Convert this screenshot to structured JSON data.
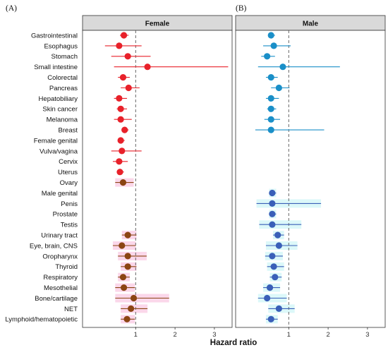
{
  "chart_data": {
    "type": "scatter",
    "subtype": "forest",
    "panel_letters": [
      "(A)",
      "(B)"
    ],
    "xlabel": "Hazard ratio",
    "x_ticks": [
      "1",
      "2",
      "3"
    ],
    "xlim": [
      -0.35,
      3.45
    ],
    "reference_line": 1,
    "categories": [
      "Gastrointestinal",
      "Esophagus",
      "Stomach",
      "Small intestine",
      "Colorectal",
      "Pancreas",
      "Hepatobiliary",
      "Skin cancer",
      "Melanoma",
      "Breast",
      "Female genital",
      "Vulva/vagina",
      "Cervix",
      "Uterus",
      "Ovary",
      "Male genital",
      "Penis",
      "Prostate",
      "Testis",
      "Urinary tract",
      "Eye, brain, CNS",
      "Oropharynx",
      "Thyroid",
      "Respiratory",
      "Mesothelial",
      "Bone/cartilage",
      "NET",
      "Lymphoid/hematopoietic"
    ],
    "panels": [
      {
        "title": "Female",
        "colors": {
          "point_sex_specific": "#e8212a",
          "point_shared": "#8b4513",
          "band": "#f7b6d8"
        },
        "points": [
          {
            "est": 0.7,
            "lo": 0.6,
            "hi": 0.82,
            "group": "specific"
          },
          {
            "est": 0.58,
            "lo": 0.22,
            "hi": 1.15,
            "group": "specific"
          },
          {
            "est": 0.8,
            "lo": 0.38,
            "hi": 1.38,
            "group": "specific"
          },
          {
            "est": 1.3,
            "lo": 0.45,
            "hi": 3.35,
            "group": "specific"
          },
          {
            "est": 0.68,
            "lo": 0.55,
            "hi": 0.85,
            "group": "specific"
          },
          {
            "est": 0.82,
            "lo": 0.62,
            "hi": 1.1,
            "group": "specific"
          },
          {
            "est": 0.58,
            "lo": 0.45,
            "hi": 0.78,
            "group": "specific"
          },
          {
            "est": 0.62,
            "lo": 0.52,
            "hi": 0.78,
            "group": "specific"
          },
          {
            "est": 0.62,
            "lo": 0.45,
            "hi": 0.9,
            "group": "specific"
          },
          {
            "est": 0.72,
            "lo": 0.65,
            "hi": 0.82,
            "group": "specific"
          },
          {
            "est": 0.62,
            "lo": 0.55,
            "hi": 0.72,
            "group": "specific"
          },
          {
            "est": 0.65,
            "lo": 0.38,
            "hi": 1.15,
            "group": "specific"
          },
          {
            "est": 0.58,
            "lo": 0.42,
            "hi": 0.8,
            "group": "specific"
          },
          {
            "est": 0.6,
            "lo": 0.52,
            "hi": 0.7,
            "group": "specific"
          },
          {
            "est": 0.68,
            "lo": 0.48,
            "hi": 0.95,
            "group": "shared"
          },
          null,
          null,
          null,
          null,
          {
            "est": 0.8,
            "lo": 0.65,
            "hi": 1.02,
            "group": "shared"
          },
          {
            "est": 0.65,
            "lo": 0.42,
            "hi": 1.0,
            "group": "shared"
          },
          {
            "est": 0.8,
            "lo": 0.55,
            "hi": 1.28,
            "group": "shared"
          },
          {
            "est": 0.8,
            "lo": 0.62,
            "hi": 1.02,
            "group": "shared"
          },
          {
            "est": 0.68,
            "lo": 0.55,
            "hi": 0.85,
            "group": "shared"
          },
          {
            "est": 0.7,
            "lo": 0.48,
            "hi": 0.98,
            "group": "shared"
          },
          {
            "est": 0.95,
            "lo": 0.48,
            "hi": 1.85,
            "group": "shared"
          },
          {
            "est": 0.88,
            "lo": 0.62,
            "hi": 1.3,
            "group": "shared"
          },
          {
            "est": 0.78,
            "lo": 0.62,
            "hi": 0.98,
            "group": "shared"
          }
        ]
      },
      {
        "title": "Male",
        "colors": {
          "point_sex_specific": "#3a5fb8",
          "point_shared": "#1a8fc8",
          "band": "#b2f0f2"
        },
        "points": [
          {
            "est": 0.55,
            "lo": 0.48,
            "hi": 0.65,
            "group": "shared"
          },
          {
            "est": 0.62,
            "lo": 0.35,
            "hi": 1.05,
            "group": "shared"
          },
          {
            "est": 0.45,
            "lo": 0.3,
            "hi": 0.65,
            "group": "shared"
          },
          {
            "est": 0.85,
            "lo": 0.22,
            "hi": 2.3,
            "group": "shared"
          },
          {
            "est": 0.55,
            "lo": 0.42,
            "hi": 0.72,
            "group": "shared"
          },
          {
            "est": 0.75,
            "lo": 0.55,
            "hi": 1.02,
            "group": "shared"
          },
          {
            "est": 0.55,
            "lo": 0.42,
            "hi": 0.75,
            "group": "shared"
          },
          {
            "est": 0.55,
            "lo": 0.45,
            "hi": 0.68,
            "group": "shared"
          },
          {
            "est": 0.55,
            "lo": 0.38,
            "hi": 0.78,
            "group": "shared"
          },
          {
            "est": 0.55,
            "lo": 0.15,
            "hi": 1.9,
            "group": "shared"
          },
          null,
          null,
          null,
          null,
          null,
          {
            "est": 0.58,
            "lo": 0.5,
            "hi": 0.68,
            "group": "specific"
          },
          {
            "est": 0.58,
            "lo": 0.18,
            "hi": 1.82,
            "group": "specific"
          },
          {
            "est": 0.58,
            "lo": 0.5,
            "hi": 0.68,
            "group": "specific"
          },
          {
            "est": 0.58,
            "lo": 0.25,
            "hi": 1.32,
            "group": "specific"
          },
          {
            "est": 0.72,
            "lo": 0.6,
            "hi": 0.88,
            "group": "specific"
          },
          {
            "est": 0.75,
            "lo": 0.42,
            "hi": 1.22,
            "group": "specific"
          },
          {
            "est": 0.58,
            "lo": 0.4,
            "hi": 0.85,
            "group": "specific"
          },
          {
            "est": 0.62,
            "lo": 0.45,
            "hi": 0.88,
            "group": "specific"
          },
          {
            "est": 0.65,
            "lo": 0.52,
            "hi": 0.82,
            "group": "specific"
          },
          {
            "est": 0.52,
            "lo": 0.35,
            "hi": 0.78,
            "group": "specific"
          },
          {
            "est": 0.45,
            "lo": 0.22,
            "hi": 0.95,
            "group": "specific"
          },
          {
            "est": 0.75,
            "lo": 0.48,
            "hi": 1.15,
            "group": "specific"
          },
          {
            "est": 0.55,
            "lo": 0.42,
            "hi": 0.72,
            "group": "specific"
          }
        ]
      }
    ],
    "grid": false,
    "legend": "none"
  }
}
